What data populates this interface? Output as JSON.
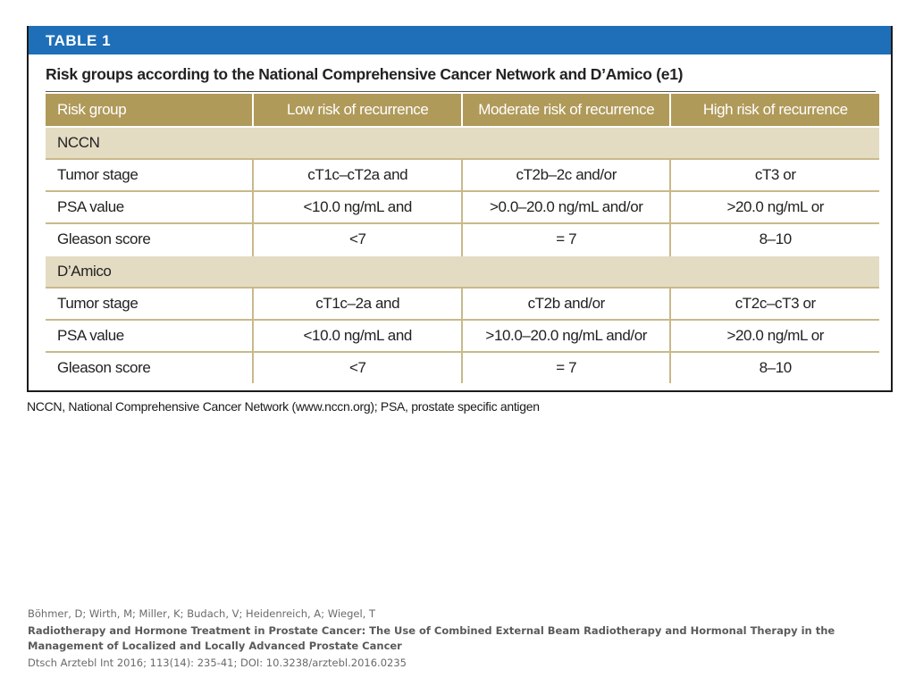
{
  "table": {
    "label": "TABLE 1",
    "title": "Risk groups according to the National Comprehensive Cancer Network and D’Amico (e1)",
    "headers": [
      "Risk group",
      "Low risk of recurrence",
      "Moderate risk of recurrence",
      "High risk of recurrence"
    ],
    "groups": [
      {
        "name": "NCCN",
        "rows": [
          [
            "Tumor stage",
            "cT1c–cT2a and",
            "cT2b–2c and/or",
            "cT3 or"
          ],
          [
            "PSA value",
            "<10.0 ng/mL and",
            ">0.0–20.0 ng/mL and/or",
            ">20.0 ng/mL or"
          ],
          [
            "Gleason score",
            "<7",
            "= 7",
            "8–10"
          ]
        ]
      },
      {
        "name": "D’Amico",
        "rows": [
          [
            "Tumor stage",
            "cT1c–2a and",
            "cT2b and/or",
            "cT2c–cT3 or"
          ],
          [
            "PSA value",
            "<10.0 ng/mL and",
            ">10.0–20.0 ng/mL and/or",
            ">20.0 ng/mL or"
          ],
          [
            "Gleason score",
            "<7",
            "= 7",
            "8–10"
          ]
        ]
      }
    ],
    "footnote": "NCCN, National Comprehensive Cancer Network (www.nccn.org); PSA, prostate specific antigen"
  },
  "citation": {
    "authors": "Böhmer, D; Wirth, M; Miller, K; Budach, V; Heidenreich, A; Wiegel, T",
    "title": "Radiotherapy and Hormone Treatment in Prostate Cancer: The Use of Combined External Beam Radiotherapy and Hormonal Therapy in the Management of Localized and Locally Advanced Prostate Cancer",
    "journal": "Dtsch Arztebl Int 2016; 113(14): 235-41; DOI: 10.3238/arztebl.2016.0235"
  },
  "colors": {
    "banner": "#1e6fb8",
    "header_row": "#b09a5a",
    "group_row": "#e4dbc3",
    "grid_line": "#c9b98a"
  }
}
